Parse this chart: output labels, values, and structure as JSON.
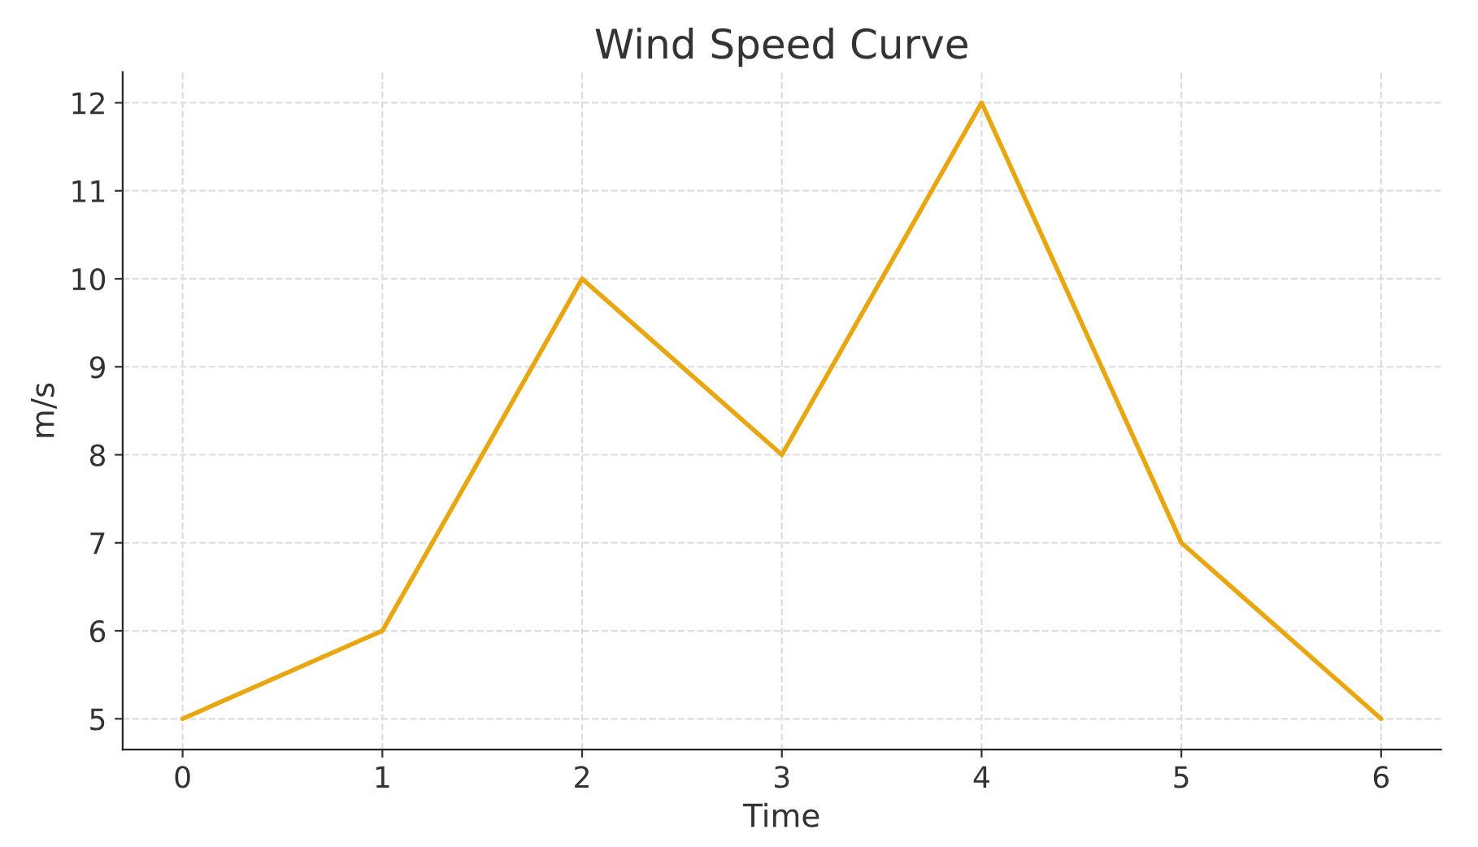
{
  "chart_data": {
    "type": "line",
    "title": "Wind Speed Curve",
    "xlabel": "Time",
    "ylabel": "m/s",
    "x": [
      0,
      1,
      2,
      3,
      4,
      5,
      6
    ],
    "series": [
      {
        "color": "#e8a70f",
        "values": [
          5,
          6,
          10,
          8,
          12,
          7,
          5
        ]
      }
    ],
    "xlim": [
      -0.3,
      6.3
    ],
    "xticks": [
      0,
      1,
      2,
      3,
      4,
      5,
      6
    ],
    "ylim": [
      4.65,
      12.35
    ],
    "yticks": [
      5,
      6,
      7,
      8,
      9,
      10,
      11,
      12
    ],
    "grid": true,
    "line_style": "solid",
    "marker": "none",
    "legend": false
  }
}
